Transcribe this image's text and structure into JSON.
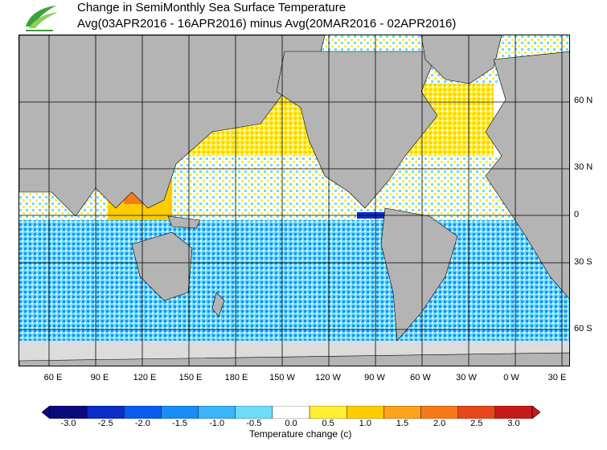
{
  "title": {
    "line1": "Change in SemiMonthly Sea Surface Temperature",
    "line2": "Avg(03APR2016 - 16APR2016) minus Avg(20MAR2016 - 02APR2016)"
  },
  "lat_labels": [
    "60 N",
    "30 N",
    "0",
    "30 S",
    "60 S"
  ],
  "lon_labels": [
    "60 E",
    "90 E",
    "120 E",
    "150 E",
    "180 E",
    "150 W",
    "120 W",
    "90 W",
    "60 W",
    "30 W",
    "0 W",
    "30 E"
  ],
  "colorbar": {
    "ticks": [
      "-3.0",
      "-2.5",
      "-2.0",
      "-1.5",
      "-1.0",
      "-0.5",
      "0.0",
      "0.5",
      "1.0",
      "1.5",
      "2.0",
      "2.5",
      "3.0"
    ],
    "colors": [
      "#0a0a7a",
      "#0a2cc8",
      "#0a5cf0",
      "#1a8cf5",
      "#3ab4fa",
      "#6edcfa",
      "#ffffff",
      "#ffef33",
      "#ffcc00",
      "#ffa31a",
      "#f77a1a",
      "#e8471a",
      "#c81a1a"
    ],
    "title": "Temperature change  (c)"
  },
  "colors": {
    "land": "#b4b4b4",
    "ice": "#dcdcdc",
    "warm_light": "#ffef33",
    "warm_mid": "#ffcc00",
    "warm_strong": "#f77a1a",
    "cool_light": "#6edcfa",
    "cool_mid": "#1a8cf5",
    "cool_strong": "#0a2cc8",
    "logo_green": "#3aa23a"
  }
}
